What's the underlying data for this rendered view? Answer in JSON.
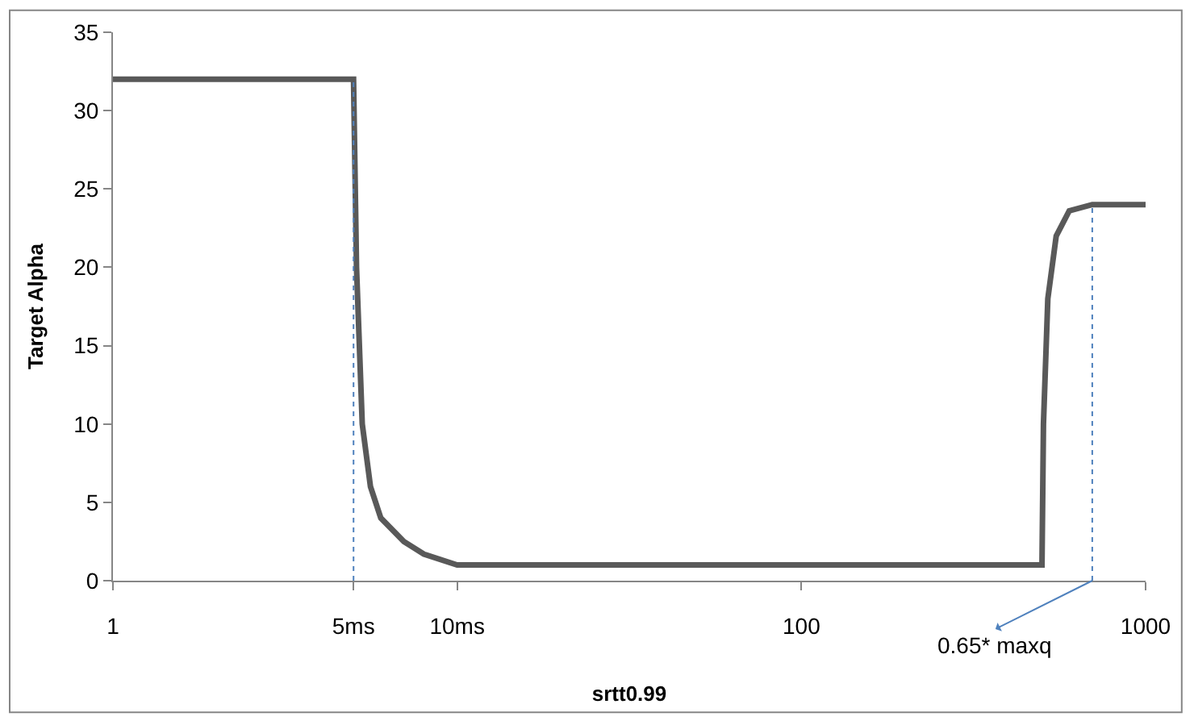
{
  "chart_data": {
    "type": "line",
    "xlabel": "srtt0.99",
    "ylabel": "Target Alpha",
    "log": "x",
    "marker": "none",
    "xlim": [
      1,
      1000
    ],
    "xticks": [
      1,
      {
        "value": 5,
        "label": "5ms"
      },
      {
        "value": 10,
        "label": "10ms"
      },
      100,
      1000
    ],
    "ylim": [
      0,
      35
    ],
    "yticks": [
      0,
      5,
      10,
      15,
      20,
      25,
      30,
      35
    ],
    "series": [
      {
        "color": "#595959",
        "line_style": "solid",
        "x": [
          1,
          5,
          5.1,
          5.3,
          5.6,
          6,
          7,
          8,
          10,
          500,
          505,
          520,
          550,
          600,
          700,
          1000
        ],
        "values": [
          32,
          32,
          20,
          10,
          6,
          4,
          2.5,
          1.7,
          1,
          1,
          10,
          18,
          22,
          23.6,
          24,
          24
        ]
      },
      {
        "color": "#4f81bd",
        "line_style": "dotted",
        "x": [
          5,
          5
        ],
        "values": [
          0,
          32
        ]
      },
      {
        "color": "#4f81bd",
        "line_style": "dotted",
        "x": [
          700,
          700
        ],
        "values": [
          0,
          24
        ]
      }
    ],
    "annotations": [
      {
        "text": "0.65* maxq",
        "x": 700,
        "y": 0
      }
    ]
  }
}
